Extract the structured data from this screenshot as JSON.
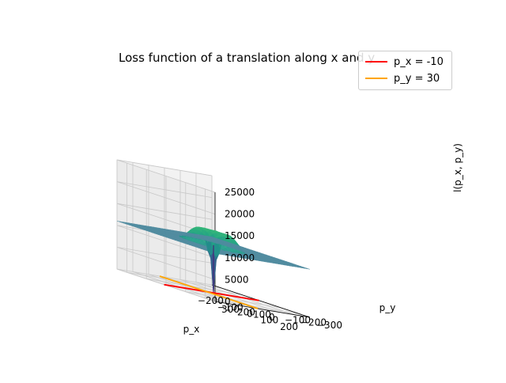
{
  "chart_data": {
    "type": "surface3d",
    "title": "Loss function of a translation along x and y",
    "xlabel": "p_x",
    "ylabel": "p_y",
    "zlabel": "l(p_x, p_y)",
    "x_ticks": [
      "−200",
      "−100",
      "0",
      "100",
      "200"
    ],
    "y_ticks": [
      "−300",
      "−200",
      "−100",
      "0",
      "100",
      "200",
      "300"
    ],
    "z_ticks": [
      "0",
      "5000",
      "10000",
      "15000",
      "20000",
      "25000"
    ],
    "xlim": [
      -250,
      250
    ],
    "ylim": [
      -300,
      300
    ],
    "zlim": [
      0,
      25000
    ],
    "surface": {
      "colormap": "viridis",
      "plateau_value": 11000,
      "peak_value": 21000,
      "min_value": 0
    },
    "lines": [
      {
        "name": "p_x = -10",
        "color": "#ff0000"
      },
      {
        "name": "p_y = 30",
        "color": "#ffa500"
      }
    ],
    "legend_position": "top-right"
  }
}
